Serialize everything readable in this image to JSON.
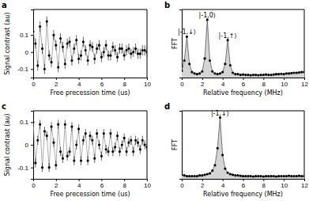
{
  "chart_data": [
    {
      "type": "line",
      "panel": "a",
      "marker": "circle",
      "x_label": "Free precession time (us)",
      "y_label": "Signal contrast (au)",
      "x": [
        0,
        0.2,
        0.4,
        0.6,
        0.8,
        1,
        1.2,
        1.4,
        1.6,
        1.8,
        2,
        2.2,
        2.4,
        2.6,
        2.8,
        3,
        3.2,
        3.4,
        3.6,
        3.8,
        4,
        4.2,
        4.4,
        4.6,
        4.8,
        5,
        5.2,
        5.4,
        5.6,
        5.8,
        6,
        6.2,
        6.4,
        6.6,
        6.8,
        7,
        7.2,
        7.4,
        7.6,
        7.8,
        8,
        8.2,
        8.4,
        8.6,
        8.8,
        9,
        9.2,
        9.4,
        9.6,
        9.8,
        10
      ],
      "values": [
        0.12,
        0.05,
        -0.08,
        0.15,
        0.02,
        -0.1,
        0.18,
        -0.02,
        -0.06,
        0.1,
        0.04,
        -0.09,
        0.08,
        0.03,
        -0.07,
        0.05,
        0.06,
        -0.05,
        0.02,
        0.07,
        -0.04,
        -0.02,
        0.06,
        0.01,
        -0.05,
        0.04,
        0.03,
        -0.04,
        0.02,
        0.04,
        -0.03,
        0.0,
        0.04,
        -0.02,
        -0.02,
        0.03,
        0.01,
        -0.03,
        0.02,
        0.02,
        -0.02,
        0.01,
        0.02,
        -0.01,
        0.0,
        0.02,
        -0.01,
        -0.01,
        0.01,
        0.01,
        0.0
      ],
      "errors": [
        0.03,
        0.03,
        0.03,
        0.03,
        0.03,
        0.03,
        0.03,
        0.03,
        0.03,
        0.03,
        0.03,
        0.03,
        0.03,
        0.03,
        0.03,
        0.03,
        0.03,
        0.03,
        0.03,
        0.03,
        0.03,
        0.03,
        0.03,
        0.03,
        0.03,
        0.03,
        0.03,
        0.03,
        0.03,
        0.03,
        0.03,
        0.03,
        0.03,
        0.03,
        0.03,
        0.03,
        0.03,
        0.03,
        0.03,
        0.03,
        0.03,
        0.03,
        0.03,
        0.03,
        0.03,
        0.03,
        0.03,
        0.03,
        0.03,
        0.03,
        0.03
      ],
      "xlim": [
        0,
        10
      ],
      "xticks": [
        0,
        2,
        4,
        6,
        8,
        10
      ],
      "ylim": [
        -0.15,
        0.25
      ],
      "yticks": [
        -0.1,
        0,
        0.1
      ]
    },
    {
      "type": "area",
      "panel": "b",
      "marker": "circle",
      "tick_labels": "x",
      "x_label": "Relative frequency (MHz)",
      "y_label": "FFT",
      "x": [
        0,
        0.25,
        0.5,
        0.75,
        1,
        1.25,
        1.5,
        1.75,
        2,
        2.25,
        2.5,
        2.75,
        3,
        3.25,
        3.5,
        3.75,
        4,
        4.25,
        4.5,
        4.75,
        5,
        5.25,
        5.5,
        5.75,
        6,
        6.25,
        6.5,
        6.75,
        7,
        7.25,
        7.5,
        7.75,
        8,
        8.25,
        8.5,
        8.75,
        9,
        9.25,
        9.5,
        9.75,
        10,
        10.25,
        10.5,
        10.75,
        11,
        11.25,
        11.5,
        11.75,
        12
      ],
      "values": [
        1.0,
        2.5,
        6.0,
        2.0,
        0.8,
        0.6,
        0.5,
        0.6,
        0.9,
        2.8,
        8.5,
        2.5,
        0.9,
        0.6,
        0.5,
        0.6,
        0.8,
        2.0,
        5.5,
        1.8,
        0.7,
        0.5,
        0.5,
        0.4,
        0.45,
        0.4,
        0.4,
        0.35,
        0.4,
        0.4,
        0.35,
        0.4,
        0.4,
        0.45,
        0.4,
        0.4,
        0.45,
        0.5,
        0.5,
        0.55,
        0.5,
        0.6,
        0.6,
        0.65,
        0.7,
        0.7,
        0.75,
        0.8,
        0.8
      ],
      "annotations": [
        {
          "text": "|-1,↓⟩",
          "x": 0.5,
          "y": 6.0
        },
        {
          "text": "|-1,0⟩",
          "x": 2.5,
          "y": 8.5
        },
        {
          "text": "|-1,↑⟩",
          "x": 4.5,
          "y": 5.5
        }
      ],
      "xlim": [
        0,
        12
      ],
      "xticks": [
        0,
        2,
        4,
        6,
        8,
        10,
        12
      ],
      "ylim": [
        0,
        10
      ]
    },
    {
      "type": "line",
      "panel": "c",
      "marker": "circle",
      "x_label": "Free precession time (us)",
      "y_label": "Signal contrast (au)",
      "x": [
        0,
        0.2,
        0.4,
        0.6,
        0.8,
        1,
        1.2,
        1.4,
        1.6,
        1.8,
        2,
        2.2,
        2.4,
        2.6,
        2.8,
        3,
        3.2,
        3.4,
        3.6,
        3.8,
        4,
        4.2,
        4.4,
        4.6,
        4.8,
        5,
        5.2,
        5.4,
        5.6,
        5.8,
        6,
        6.2,
        6.4,
        6.6,
        6.8,
        7,
        7.2,
        7.4,
        7.6,
        7.8,
        8,
        8.2,
        8.4,
        8.6,
        8.8,
        9,
        9.2,
        9.4,
        9.6,
        9.8,
        10
      ],
      "values": [
        0.1,
        -0.08,
        0.02,
        0.09,
        -0.1,
        0.06,
        0.04,
        -0.1,
        0.08,
        0.01,
        -0.09,
        0.09,
        -0.03,
        -0.06,
        0.09,
        -0.05,
        -0.03,
        0.08,
        -0.07,
        0.0,
        0.07,
        -0.07,
        0.02,
        0.05,
        -0.07,
        0.04,
        0.02,
        -0.06,
        0.05,
        0.0,
        -0.05,
        0.05,
        -0.02,
        -0.03,
        0.05,
        -0.03,
        -0.01,
        0.04,
        -0.03,
        0.0,
        0.03,
        -0.03,
        0.01,
        0.02,
        -0.03,
        0.02,
        0.01,
        -0.02,
        0.02,
        0.0,
        -0.01
      ],
      "errors": [
        0.02,
        0.02,
        0.02,
        0.02,
        0.02,
        0.02,
        0.02,
        0.02,
        0.02,
        0.02,
        0.02,
        0.02,
        0.02,
        0.02,
        0.02,
        0.02,
        0.02,
        0.02,
        0.02,
        0.02,
        0.02,
        0.02,
        0.02,
        0.02,
        0.02,
        0.02,
        0.02,
        0.02,
        0.02,
        0.02,
        0.02,
        0.02,
        0.02,
        0.02,
        0.02,
        0.02,
        0.02,
        0.02,
        0.02,
        0.02,
        0.02,
        0.02,
        0.02,
        0.02,
        0.02,
        0.02,
        0.02,
        0.02,
        0.02,
        0.02,
        0.02
      ],
      "xlim": [
        0,
        10
      ],
      "xticks": [
        0,
        2,
        4,
        6,
        8,
        10
      ],
      "ylim": [
        -0.15,
        0.15
      ],
      "yticks": [
        -0.1,
        0,
        0.1
      ]
    },
    {
      "type": "area",
      "panel": "d",
      "marker": "circle",
      "tick_labels": "x",
      "x_label": "Relative frequency (MHz)",
      "y_label": "FFT",
      "x": [
        0,
        0.25,
        0.5,
        0.75,
        1,
        1.25,
        1.5,
        1.75,
        2,
        2.25,
        2.5,
        2.75,
        3,
        3.25,
        3.5,
        3.75,
        4,
        4.25,
        4.5,
        4.75,
        5,
        5.25,
        5.5,
        5.75,
        6,
        6.25,
        6.5,
        6.75,
        7,
        7.25,
        7.5,
        7.75,
        8,
        8.25,
        8.5,
        8.75,
        9,
        9.25,
        9.5,
        9.75,
        10,
        10.25,
        10.5,
        10.75,
        11,
        11.25,
        11.5,
        11.75,
        12
      ],
      "values": [
        0.6,
        0.5,
        0.4,
        0.4,
        0.4,
        0.4,
        0.4,
        0.5,
        0.5,
        0.6,
        0.7,
        0.8,
        1.2,
        2.0,
        4.5,
        9.0,
        3.5,
        1.5,
        0.9,
        0.7,
        0.6,
        0.5,
        0.5,
        0.45,
        0.4,
        0.4,
        0.4,
        0.4,
        0.35,
        0.4,
        0.4,
        0.4,
        0.35,
        0.4,
        0.4,
        0.4,
        0.4,
        0.35,
        0.4,
        0.4,
        0.4,
        0.4,
        0.45,
        0.4,
        0.4,
        0.4,
        0.45,
        0.4,
        0.4
      ],
      "annotations": [
        {
          "text": "|-1,↓⟩",
          "x": 3.75,
          "y": 9.0
        }
      ],
      "xlim": [
        0,
        12
      ],
      "xticks": [
        0,
        2,
        4,
        6,
        8,
        10,
        12
      ],
      "ylim": [
        0,
        10
      ]
    }
  ]
}
